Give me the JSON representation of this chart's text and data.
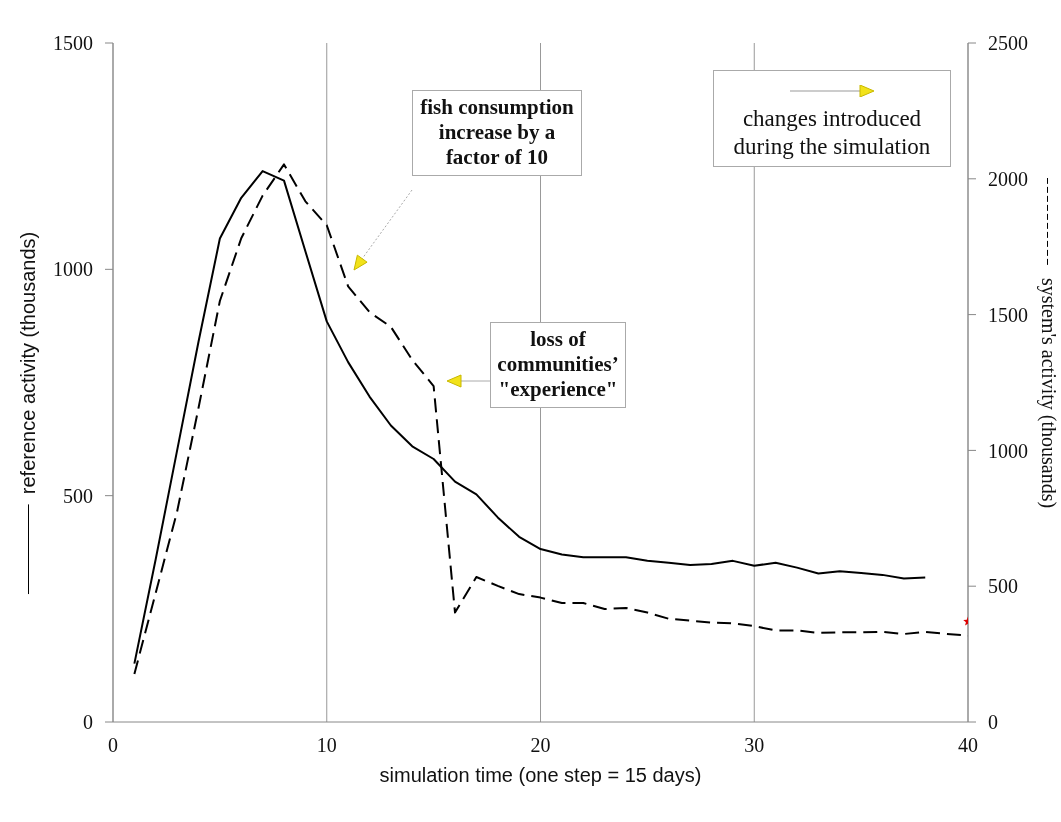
{
  "chart_data": {
    "type": "line",
    "xlabel": "simulation time (one step = 15 days)",
    "ylabel": "reference activity (thousands)",
    "y2label": "system's activity (thousands)",
    "xlim": [
      0,
      40
    ],
    "xticks": [
      0,
      10,
      20,
      30,
      40
    ],
    "ylim": [
      0,
      1500
    ],
    "yticks": [
      0,
      500,
      1000,
      1500
    ],
    "y2lim": [
      0,
      2500
    ],
    "y2ticks": [
      0,
      500,
      1000,
      1500,
      2000,
      2500
    ],
    "grid": "x",
    "marker": "none",
    "series": [
      {
        "color": "#000000",
        "line_style": "solid",
        "x": [
          1,
          2,
          3,
          4,
          5,
          6,
          7,
          8,
          9,
          10,
          11,
          12,
          13,
          14,
          15,
          16,
          17,
          18,
          19,
          20,
          21,
          22,
          23,
          24,
          25,
          26,
          27,
          28,
          29,
          30,
          31,
          32,
          33,
          34,
          35,
          36,
          37,
          38
        ],
        "values": [
          129,
          360,
          600,
          840,
          1068,
          1158,
          1217,
          1196,
          1040,
          885,
          795,
          719,
          655,
          609,
          581,
          531,
          503,
          452,
          409,
          382,
          370,
          364,
          364,
          364,
          356,
          352,
          347,
          349,
          356,
          345,
          352,
          341,
          328,
          333,
          329,
          325,
          317,
          319
        ]
      },
      {
        "color": "#000000",
        "line_style": "dashed",
        "axis": "y2",
        "x": [
          1,
          2,
          3,
          4,
          5,
          6,
          7,
          8,
          9,
          10,
          11,
          12,
          13,
          14,
          15,
          16,
          17,
          18,
          19,
          20,
          21,
          22,
          23,
          24,
          25,
          26,
          27,
          28,
          29,
          30,
          31,
          32,
          33,
          34,
          35,
          36,
          37,
          38,
          39,
          40
        ],
        "values": [
          177,
          476,
          775,
          1156,
          1550,
          1781,
          1938,
          2053,
          1917,
          1829,
          1604,
          1509,
          1455,
          1333,
          1237,
          403,
          534,
          501,
          471,
          458,
          438,
          438,
          416,
          420,
          403,
          380,
          373,
          366,
          363,
          353,
          337,
          337,
          328,
          330,
          330,
          332,
          324,
          332,
          324,
          318
        ]
      },
      {
        "type": "scatter",
        "marker": "star",
        "color": "#dd0000",
        "axis": "y2",
        "x": [
          40
        ],
        "values": [
          370
        ]
      }
    ],
    "annotations": [
      "fish consumption increase by a factor of 10",
      "loss of communities’ \"experience\"",
      "changes introduced during the simulation"
    ]
  }
}
